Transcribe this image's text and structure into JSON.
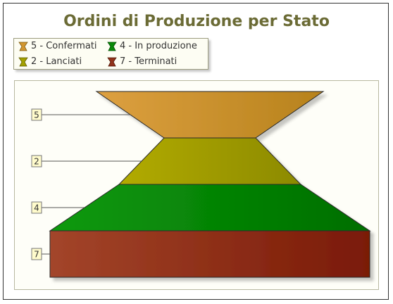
{
  "chart_data": {
    "type": "pyramid",
    "title": "Ordini di Produzione per Stato",
    "series": [
      {
        "name": "Confermati",
        "value": 5,
        "label": "5",
        "legend": "5 - Confermati",
        "colors": [
          "#dda040",
          "#b7821c"
        ]
      },
      {
        "name": "Lanciati",
        "value": 2,
        "label": "2",
        "legend": "2 - Lanciati",
        "colors": [
          "#b2ab00",
          "#8c8a00"
        ]
      },
      {
        "name": "In produzione",
        "value": 4,
        "label": "4",
        "legend": "4 - In produzione",
        "colors": [
          "#0c9a0c",
          "#006e00"
        ]
      },
      {
        "name": "Terminati",
        "value": 7,
        "label": "7",
        "legend": "7 - Terminati",
        "colors": [
          "#a3452a",
          "#7a1a06"
        ]
      }
    ],
    "legend_placement": "top-left"
  }
}
